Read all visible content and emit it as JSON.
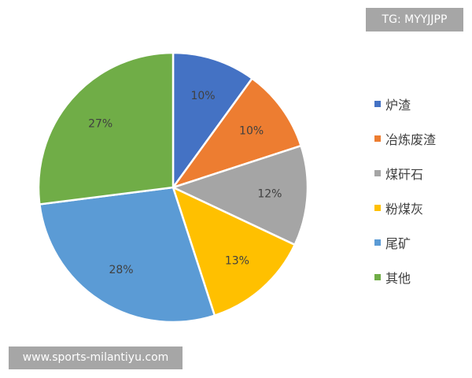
{
  "chart_data": {
    "type": "pie",
    "start_angle": "12 o'clock",
    "direction": "clockwise",
    "legend_position": "right",
    "slices": [
      {
        "name": "炉渣",
        "value": 10,
        "label": "10%",
        "color": "#4472C4"
      },
      {
        "name": "冶炼废渣",
        "value": 10,
        "label": "10%",
        "color": "#ED7D31"
      },
      {
        "name": "煤矸石",
        "value": 12,
        "label": "12%",
        "color": "#A5A5A5"
      },
      {
        "name": "粉煤灰",
        "value": 13,
        "label": "13%",
        "color": "#FFC000"
      },
      {
        "name": "尾矿",
        "value": 28,
        "label": "28%",
        "color": "#5B9BD5"
      },
      {
        "name": "其他",
        "value": 27,
        "label": "27%",
        "color": "#70AD47"
      }
    ]
  },
  "watermarks": {
    "top": "TG: MYYJJPP",
    "bottom": "www.sports-milantiyu.com"
  }
}
